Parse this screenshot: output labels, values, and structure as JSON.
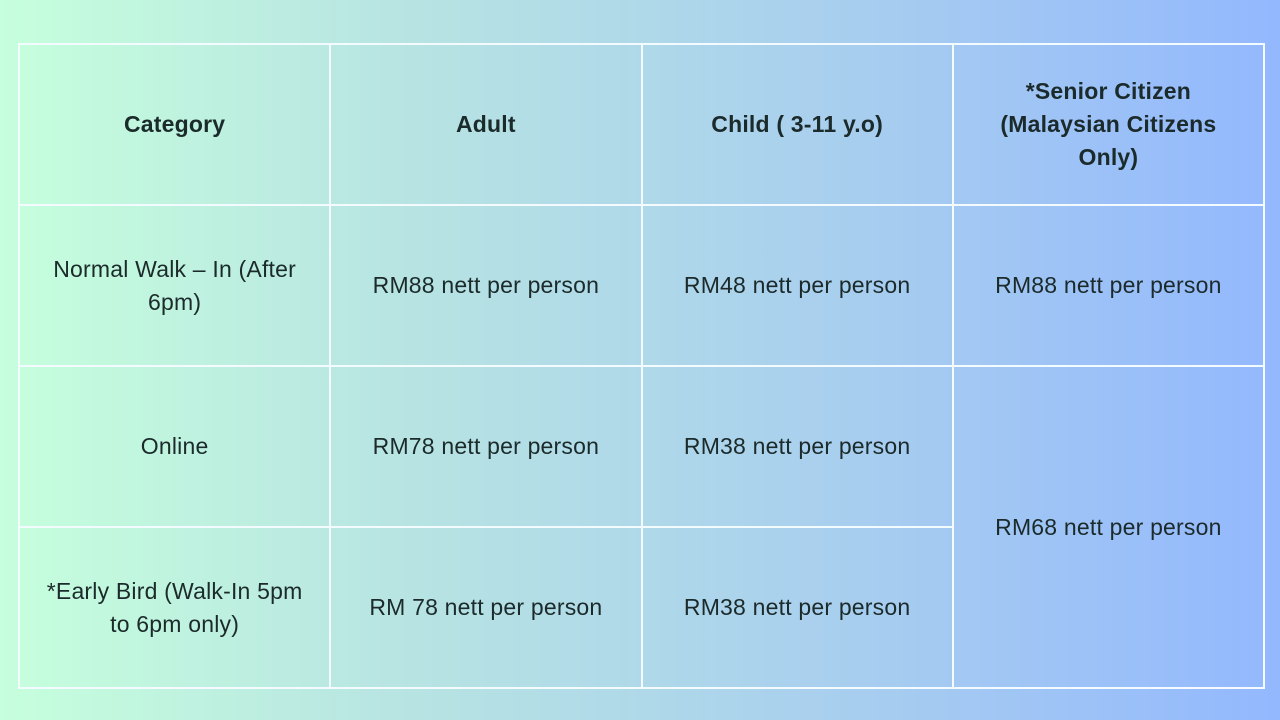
{
  "table": {
    "headers": {
      "category": "Category",
      "adult": "Adult",
      "child": "Child ( 3-11 y.o)",
      "senior": "*Senior Citizen (Malaysian Citizens Only)"
    },
    "rows": [
      {
        "category": "Normal Walk – In (After 6pm)",
        "adult": "RM88 nett per person",
        "child": "RM48 nett per person",
        "senior": "RM88 nett per person"
      },
      {
        "category": "Online",
        "adult": "RM78 nett per person",
        "child": "RM38 nett per person"
      },
      {
        "category": "*Early Bird (Walk-In 5pm to 6pm only)",
        "adult": "RM 78 nett per person",
        "child": "RM38 nett per person"
      }
    ],
    "senior_merged": "RM68 nett per person"
  }
}
